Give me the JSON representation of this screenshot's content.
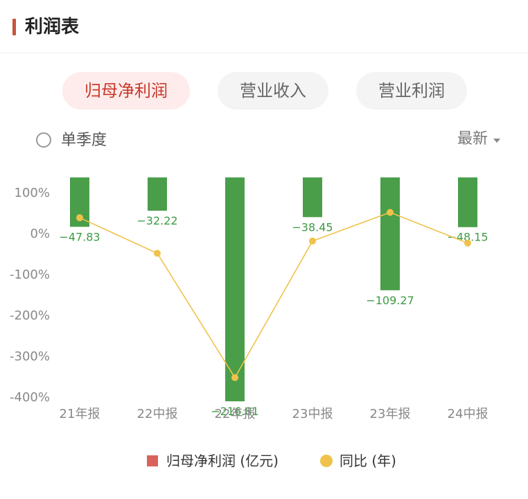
{
  "header": {
    "title": "利润表"
  },
  "tabs": [
    {
      "label": "归母净利润",
      "active": true
    },
    {
      "label": "营业收入",
      "active": false
    },
    {
      "label": "营业利润",
      "active": false
    }
  ],
  "controls": {
    "single_quarter_label": "单季度",
    "sort_label": "最新"
  },
  "colors": {
    "bar": "#4a9e4a",
    "line": "#f0c24b",
    "legend_bar": "#d9635c",
    "value_label": "#3e9b45",
    "axis_text": "#888888"
  },
  "chart_data": {
    "type": "bar",
    "categories": [
      "21年报",
      "22中报",
      "22年报",
      "23中报",
      "23年报",
      "24中报"
    ],
    "series": [
      {
        "name": "归母净利润 (亿元)",
        "type": "bar",
        "values": [
          -47.83,
          -32.22,
          -216.81,
          -38.45,
          -109.27,
          -48.15
        ],
        "labels": [
          "−47.83",
          "−32.22",
          "−216.81",
          "−38.45",
          "−109.27",
          "−48.15"
        ]
      },
      {
        "name": "同比 (年)",
        "type": "line",
        "values": [
          37,
          -50,
          -354,
          -20,
          50,
          -25
        ]
      }
    ],
    "y_axis": {
      "ticks": [
        100,
        0,
        -100,
        -200,
        -300,
        -400
      ],
      "tick_labels": [
        "100%",
        "0%",
        "-100%",
        "-200%",
        "-300%",
        "-400%"
      ],
      "range": [
        -400,
        140
      ]
    },
    "bar_axis_range": [
      -240,
      0
    ]
  },
  "legend": [
    {
      "label": "归母净利润 (亿元)"
    },
    {
      "label": "同比 (年)"
    }
  ]
}
